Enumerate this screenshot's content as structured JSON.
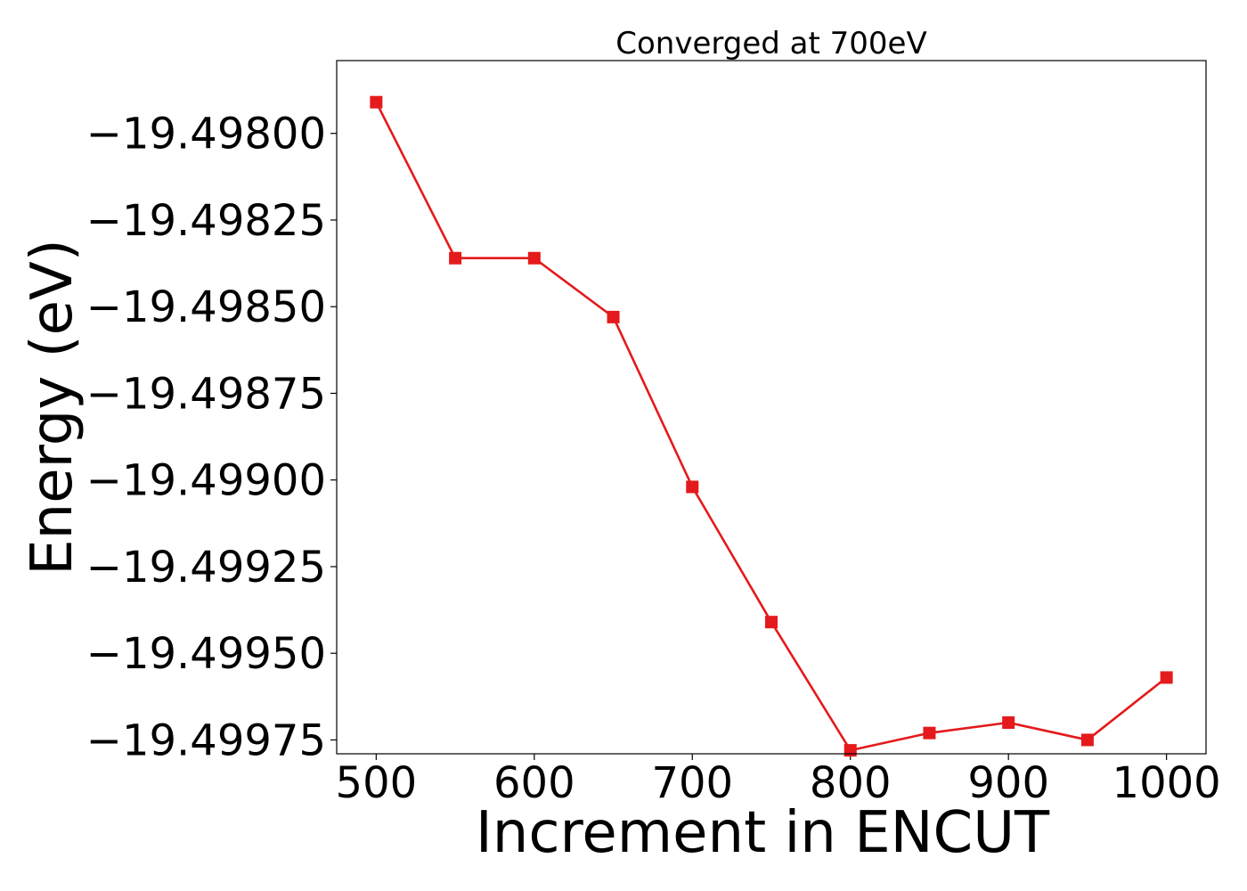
{
  "chart_data": {
    "type": "line",
    "title": "Converged at 700eV",
    "xlabel": "Increment in ENCUT",
    "ylabel": "Energy (eV)",
    "xlim": [
      475,
      1025
    ],
    "ylim": [
      -19.49979,
      -19.49779
    ],
    "xticks": [
      500,
      600,
      700,
      800,
      900,
      1000
    ],
    "xtick_labels": [
      "500",
      "600",
      "700",
      "800",
      "900",
      "1000"
    ],
    "yticks": [
      -19.498,
      -19.49825,
      -19.4985,
      -19.49875,
      -19.499,
      -19.49925,
      -19.4995,
      -19.49975
    ],
    "ytick_labels": [
      "−19.49800",
      "−19.49825",
      "−19.49850",
      "−19.49875",
      "−19.49900",
      "−19.49925",
      "−19.49950",
      "−19.49975"
    ],
    "grid": false,
    "series": [
      {
        "color": "#e41a1c",
        "marker": "square",
        "x": [
          500,
          550,
          600,
          650,
          700,
          750,
          800,
          850,
          900,
          950,
          1000
        ],
        "y": [
          -19.49791,
          -19.49836,
          -19.49836,
          -19.49853,
          -19.49902,
          -19.49941,
          -19.49978,
          -19.49973,
          -19.4997,
          -19.49975,
          -19.49957
        ]
      }
    ]
  }
}
